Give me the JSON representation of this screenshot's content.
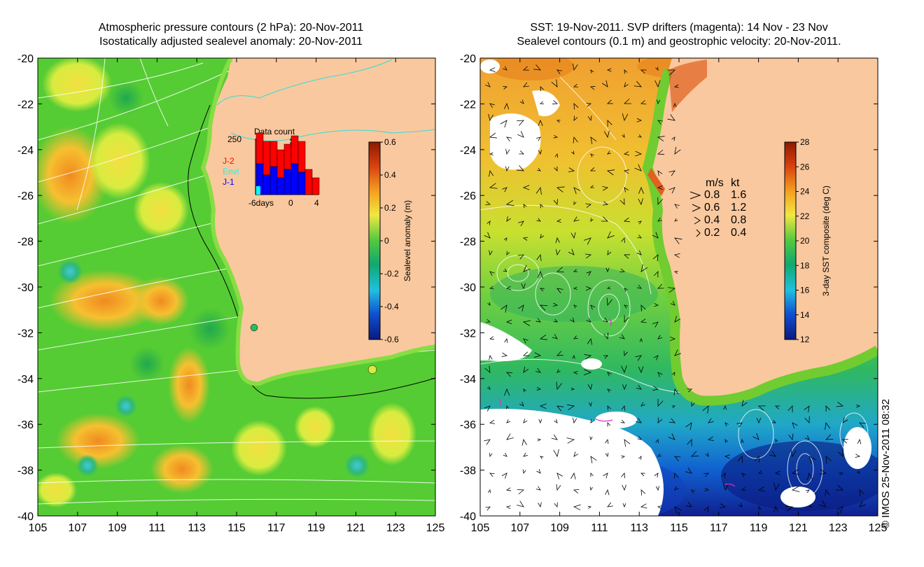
{
  "left_panel": {
    "title_line1": "Atmospheric pressure contours (2 hPa): 20-Nov-2011",
    "title_line2": "Isostatically adjusted sealevel anomaly: 20-Nov-2011",
    "colorbar": {
      "label": "Sealevel anomaly (m)",
      "ticks": [
        "0.6",
        "0.4",
        "0.2",
        "0",
        "-0.2",
        "-0.4",
        "-0.6"
      ]
    },
    "data_count": {
      "title": "Data count",
      "max_label": "250",
      "x_labels": [
        "-6days",
        "0",
        "4"
      ],
      "legend": [
        {
          "name": "J-2",
          "color": "#ff0000"
        },
        {
          "name": "Envi",
          "color": "#00ffff"
        },
        {
          "name": "J-1",
          "color": "#0000ff"
        }
      ]
    }
  },
  "right_panel": {
    "title_line1": "SST: 19-Nov-2011. SVP drifters (magenta): 14 Nov - 23 Nov",
    "title_line2": "Sealevel contours (0.1 m) and geostrophic velocity: 20-Nov-2011.",
    "colorbar": {
      "label": "3-day SST composite (deg C)",
      "ticks": [
        "28",
        "26",
        "24",
        "22",
        "20",
        "18",
        "16",
        "14",
        "12"
      ]
    },
    "velocity_legend": {
      "header_ms": "m/s",
      "header_kt": "kt",
      "rows": [
        {
          "ms": "0.8",
          "kt": "1.6"
        },
        {
          "ms": "0.6",
          "kt": "1.2"
        },
        {
          "ms": "0.4",
          "kt": "0.8"
        },
        {
          "ms": "0.2",
          "kt": "0.4"
        }
      ]
    }
  },
  "axes": {
    "lat_labels": [
      "-20",
      "-22",
      "-24",
      "-26",
      "-28",
      "-30",
      "-32",
      "-34",
      "-36",
      "-38",
      "-40"
    ],
    "lon_labels": [
      "105",
      "107",
      "109",
      "111",
      "113",
      "115",
      "117",
      "119",
      "121",
      "123",
      "125"
    ]
  },
  "copyright": "© IMOS 25-Nov-2011 08:32",
  "colors": {
    "land": "#f9c89e",
    "ocean_green": "#55cc33",
    "contour": "#ffffff",
    "coast_contour": "#000000",
    "cyan_contour": "#33dddd"
  }
}
